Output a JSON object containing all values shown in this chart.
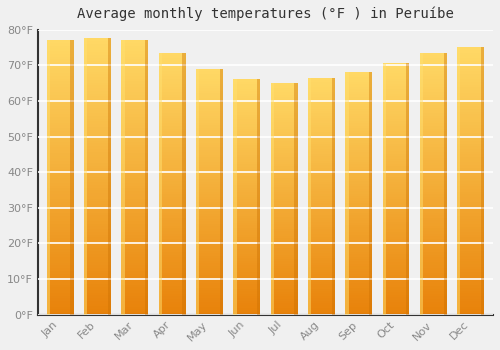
{
  "title": "Average monthly temperatures (°F ) in Peruíbe",
  "months": [
    "Jan",
    "Feb",
    "Mar",
    "Apr",
    "May",
    "Jun",
    "Jul",
    "Aug",
    "Sep",
    "Oct",
    "Nov",
    "Dec"
  ],
  "values": [
    77,
    77.5,
    77,
    73.5,
    69,
    66,
    65,
    66.5,
    68,
    70.5,
    73.5,
    75
  ],
  "ylim": [
    0,
    80
  ],
  "yticks": [
    0,
    10,
    20,
    30,
    40,
    50,
    60,
    70,
    80
  ],
  "bar_color_top": "#FFD966",
  "bar_color_mid": "#FFA500",
  "bar_color_bottom": "#E8820A",
  "bar_color_left": "#FFD040",
  "bar_color_right": "#E08000",
  "background_color": "#f0f0f0",
  "plot_bg_color": "#f0f0f0",
  "grid_color": "#ffffff",
  "title_fontsize": 10,
  "tick_fontsize": 8,
  "tick_color": "#888888",
  "title_color": "#333333",
  "spine_color": "#333333"
}
